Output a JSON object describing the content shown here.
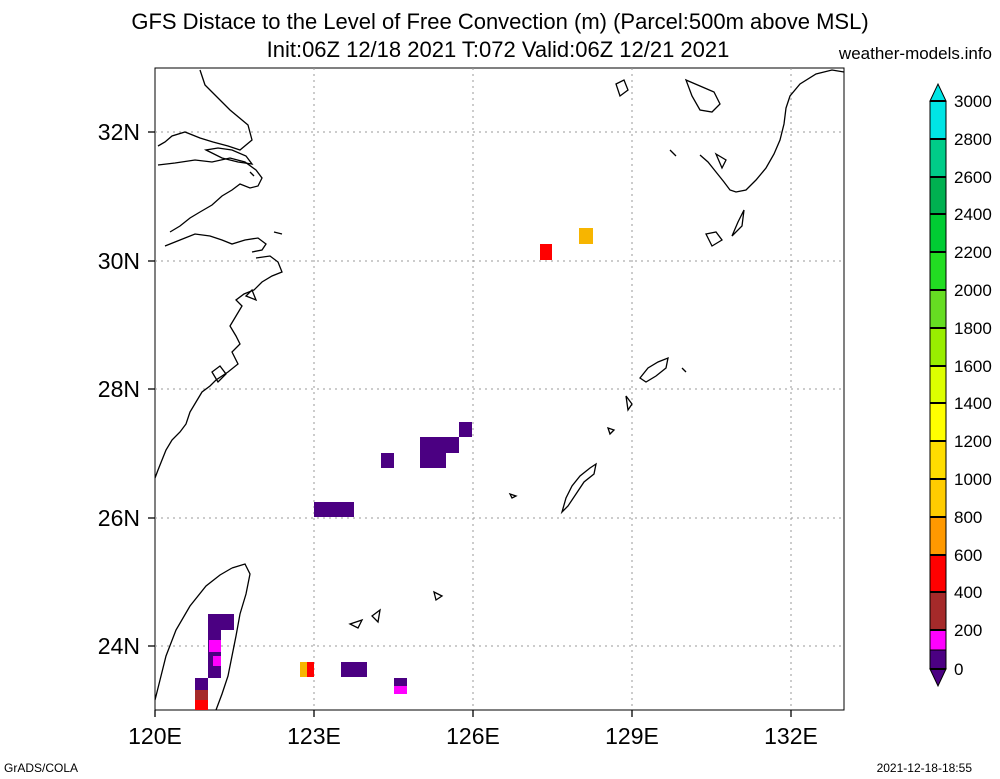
{
  "header": {
    "title_line1": "GFS Distace to the Level of Free Convection (m) (Parcel:500m above MSL)",
    "title_line2": "Init:06Z 12/18 2021 T:072 Valid:06Z 12/21 2021",
    "site": "weather-models.info"
  },
  "footer": {
    "left": "GrADS/COLA",
    "right": "2021-12-18-18:55"
  },
  "map": {
    "lon_range": [
      120,
      133
    ],
    "lat_range": [
      23,
      33
    ],
    "lon_ticks": [
      "120E",
      "123E",
      "126E",
      "129E",
      "132E"
    ],
    "lat_ticks": [
      "32N",
      "30N",
      "28N",
      "26N",
      "24N"
    ],
    "grid": "dotted"
  },
  "colorbar": {
    "labels": [
      "3000",
      "2800",
      "2600",
      "2400",
      "2200",
      "2000",
      "1800",
      "1600",
      "1400",
      "1200",
      "1000",
      "800",
      "600",
      "400",
      "200",
      "0"
    ]
  }
}
